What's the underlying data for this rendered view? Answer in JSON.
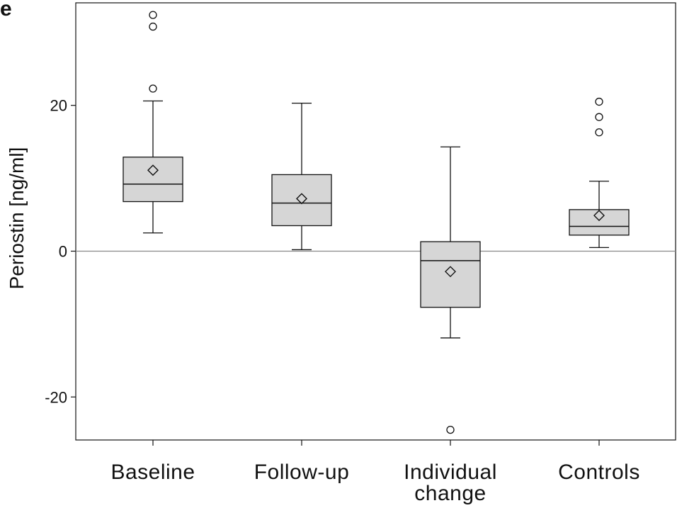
{
  "panel_label": "e",
  "colors": {
    "box_fill": "#d6d6d6",
    "stroke": "#111111",
    "reference_line": "#8a8a8a",
    "outlier_fill": "#ffffff"
  },
  "chart_data": {
    "type": "boxplot",
    "title": "",
    "xlabel": "",
    "ylabel": "Periostin [ng/ml]",
    "ylim": [
      -26,
      34
    ],
    "yticks": [
      -20,
      0,
      20
    ],
    "ytick_labels": [
      "-20",
      "0",
      "20"
    ],
    "reference_line_y": 0,
    "grid": false,
    "categories": [
      {
        "label_lines": [
          "Baseline"
        ]
      },
      {
        "label_lines": [
          "Follow-up"
        ]
      },
      {
        "label_lines": [
          "Individual",
          "change"
        ]
      },
      {
        "label_lines": [
          "Controls"
        ]
      }
    ],
    "boxes": [
      {
        "whisker_low": 2.5,
        "q1": 6.8,
        "median": 9.2,
        "q3": 12.9,
        "whisker_high": 20.6,
        "mean": 11.1,
        "outliers": [
          22.3,
          30.8,
          32.4
        ]
      },
      {
        "whisker_low": 0.2,
        "q1": 3.5,
        "median": 6.6,
        "q3": 10.5,
        "whisker_high": 20.3,
        "mean": 7.2,
        "outliers": []
      },
      {
        "whisker_low": -11.9,
        "q1": -7.7,
        "median": -1.3,
        "q3": 1.3,
        "whisker_high": 14.3,
        "mean": -2.8,
        "outliers": [
          -24.5
        ]
      },
      {
        "whisker_low": 0.5,
        "q1": 2.2,
        "median": 3.4,
        "q3": 5.7,
        "whisker_high": 9.6,
        "mean": 4.9,
        "outliers": [
          16.3,
          18.4,
          20.5
        ]
      }
    ]
  }
}
